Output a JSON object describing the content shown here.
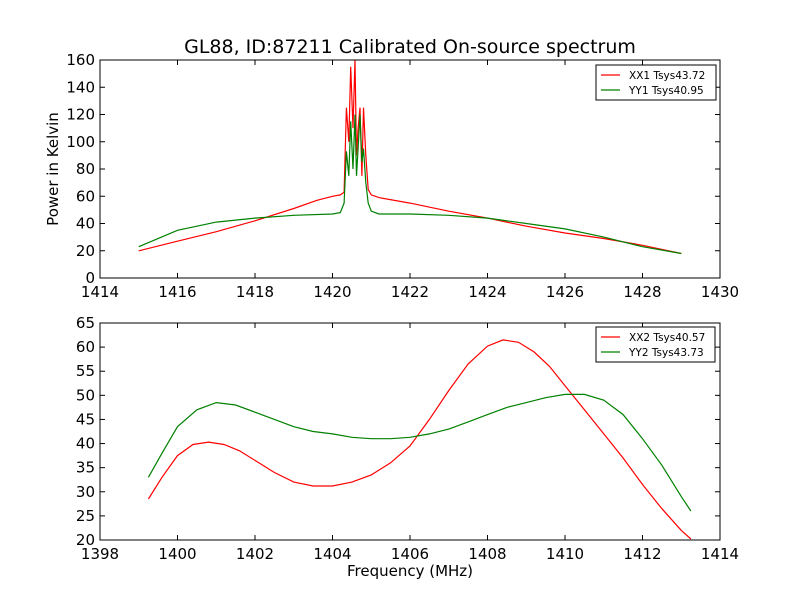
{
  "figure": {
    "title": "GL88, ID:87211 Calibrated On-source spectrum",
    "xlabel": "Frequency (MHz)"
  },
  "chart_data": [
    {
      "type": "line",
      "title": "GL88, ID:87211 Calibrated On-source spectrum",
      "xlabel": "",
      "ylabel": "Power in Kelvin",
      "xlim": [
        1414,
        1430
      ],
      "ylim": [
        0,
        160
      ],
      "xticks": [
        "1414",
        "1416",
        "1418",
        "1420",
        "1422",
        "1424",
        "1426",
        "1428",
        "1430"
      ],
      "yticks": [
        "0",
        "20",
        "40",
        "60",
        "80",
        "100",
        "120",
        "140",
        "160"
      ],
      "grid": false,
      "legend_position": "top-right",
      "series": [
        {
          "name": "XX1 Tsys43.72",
          "color": "#ff0000",
          "x": [
            1415.0,
            1416.0,
            1417.0,
            1418.0,
            1419.0,
            1419.6,
            1420.0,
            1420.2,
            1420.3,
            1420.36,
            1420.42,
            1420.47,
            1420.53,
            1420.58,
            1420.62,
            1420.66,
            1420.71,
            1420.76,
            1420.8,
            1420.86,
            1420.92,
            1421.0,
            1421.2,
            1422.0,
            1423.0,
            1424.0,
            1425.0,
            1426.0,
            1427.0,
            1428.0,
            1429.0
          ],
          "y": [
            20,
            27,
            34,
            42,
            51,
            57,
            60,
            61,
            63,
            125,
            100,
            155,
            110,
            160,
            90,
            110,
            125,
            75,
            125,
            90,
            65,
            61,
            59,
            55,
            49,
            44,
            38,
            33,
            29,
            24,
            18
          ]
        },
        {
          "name": "YY1 Tsys40.95",
          "color": "#008000",
          "x": [
            1415.0,
            1416.0,
            1417.0,
            1418.0,
            1419.0,
            1420.0,
            1420.2,
            1420.3,
            1420.36,
            1420.42,
            1420.47,
            1420.53,
            1420.58,
            1420.62,
            1420.66,
            1420.71,
            1420.76,
            1420.8,
            1420.86,
            1420.92,
            1421.0,
            1421.2,
            1422.0,
            1423.0,
            1424.0,
            1425.0,
            1426.0,
            1427.0,
            1428.0,
            1429.0
          ],
          "y": [
            23,
            35,
            41,
            44,
            46,
            47,
            48,
            55,
            93,
            75,
            115,
            80,
            120,
            75,
            95,
            120,
            85,
            95,
            70,
            55,
            49,
            47,
            47,
            46,
            44,
            40,
            36,
            30,
            23,
            18
          ]
        }
      ]
    },
    {
      "type": "line",
      "title": "",
      "xlabel": "Frequency (MHz)",
      "ylabel": "",
      "xlim": [
        1398,
        1414
      ],
      "ylim": [
        20,
        65
      ],
      "xticks": [
        "1398",
        "1400",
        "1402",
        "1404",
        "1406",
        "1408",
        "1410",
        "1412",
        "1414"
      ],
      "yticks": [
        "20",
        "25",
        "30",
        "35",
        "40",
        "45",
        "50",
        "55",
        "60",
        "65"
      ],
      "grid": false,
      "legend_position": "top-right",
      "series": [
        {
          "name": "XX2 Tsys40.57",
          "color": "#ff0000",
          "x": [
            1399.25,
            1399.6,
            1400.0,
            1400.4,
            1400.8,
            1401.2,
            1401.6,
            1402.0,
            1402.5,
            1403.0,
            1403.5,
            1404.0,
            1404.5,
            1405.0,
            1405.5,
            1406.0,
            1406.5,
            1407.0,
            1407.5,
            1408.0,
            1408.4,
            1408.8,
            1409.2,
            1409.6,
            1410.0,
            1410.5,
            1411.0,
            1411.5,
            1412.0,
            1412.5,
            1413.0,
            1413.25
          ],
          "y": [
            28.5,
            33.0,
            37.5,
            39.8,
            40.3,
            39.8,
            38.5,
            36.5,
            34.0,
            32.0,
            31.2,
            31.2,
            32.0,
            33.5,
            36.0,
            39.5,
            45.0,
            51.0,
            56.5,
            60.2,
            61.5,
            61.0,
            59.0,
            56.0,
            52.0,
            47.0,
            42.0,
            37.0,
            31.5,
            26.5,
            22.0,
            20.2
          ]
        },
        {
          "name": "YY2 Tsys43.73",
          "color": "#008000",
          "x": [
            1399.25,
            1399.6,
            1400.0,
            1400.5,
            1401.0,
            1401.5,
            1402.0,
            1402.5,
            1403.0,
            1403.5,
            1404.0,
            1404.5,
            1405.0,
            1405.5,
            1406.0,
            1406.5,
            1407.0,
            1407.5,
            1408.0,
            1408.5,
            1409.0,
            1409.5,
            1410.0,
            1410.5,
            1411.0,
            1411.5,
            1412.0,
            1412.5,
            1413.0,
            1413.25
          ],
          "y": [
            33.0,
            38.0,
            43.5,
            47.0,
            48.5,
            48.0,
            46.5,
            45.0,
            43.5,
            42.5,
            42.0,
            41.3,
            41.0,
            41.0,
            41.3,
            42.0,
            43.0,
            44.5,
            46.0,
            47.5,
            48.5,
            49.5,
            50.2,
            50.2,
            49.0,
            46.0,
            41.0,
            35.5,
            29.0,
            26.0
          ]
        }
      ]
    }
  ]
}
